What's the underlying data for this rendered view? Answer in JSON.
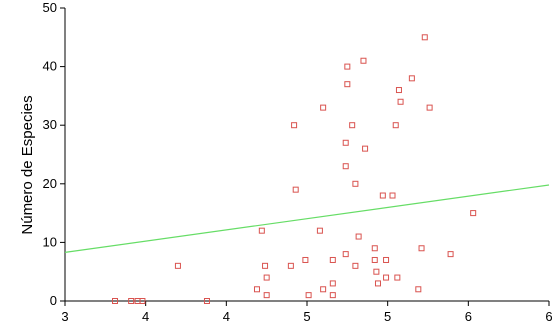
{
  "chart_data": {
    "type": "scatter",
    "title": "",
    "xlabel": "",
    "ylabel": "Número de Especies",
    "xlim": [
      3,
      6
    ],
    "ylim": [
      0,
      50
    ],
    "x_ticks": [
      3,
      3.5,
      4,
      4.5,
      5,
      5.5,
      6
    ],
    "x_tick_labels": [
      "3",
      "4",
      "4",
      "5",
      "5",
      "6",
      "6"
    ],
    "y_ticks": [
      0,
      10,
      20,
      30,
      40,
      50
    ],
    "y_tick_labels": [
      "0",
      "10",
      "20",
      "30",
      "40",
      "50"
    ],
    "grid": false,
    "marker": "open-square",
    "marker_color": "#d9534f",
    "fit_line_color": "#66dd66",
    "fit_line": {
      "x": [
        3,
        6
      ],
      "y": [
        8.3,
        19.8
      ]
    },
    "points": [
      {
        "x": 3.31,
        "y": 0
      },
      {
        "x": 3.41,
        "y": 0
      },
      {
        "x": 3.45,
        "y": 0
      },
      {
        "x": 3.48,
        "y": 0
      },
      {
        "x": 3.7,
        "y": 6
      },
      {
        "x": 3.88,
        "y": 0
      },
      {
        "x": 4.19,
        "y": 2
      },
      {
        "x": 4.22,
        "y": 12
      },
      {
        "x": 4.24,
        "y": 6
      },
      {
        "x": 4.25,
        "y": 4
      },
      {
        "x": 4.25,
        "y": 1
      },
      {
        "x": 4.4,
        "y": 6
      },
      {
        "x": 4.42,
        "y": 30
      },
      {
        "x": 4.43,
        "y": 19
      },
      {
        "x": 4.49,
        "y": 7
      },
      {
        "x": 4.51,
        "y": 1
      },
      {
        "x": 4.58,
        "y": 12
      },
      {
        "x": 4.6,
        "y": 2
      },
      {
        "x": 4.6,
        "y": 33
      },
      {
        "x": 4.66,
        "y": 7
      },
      {
        "x": 4.66,
        "y": 3
      },
      {
        "x": 4.66,
        "y": 1
      },
      {
        "x": 4.75,
        "y": 40
      },
      {
        "x": 4.75,
        "y": 37
      },
      {
        "x": 4.74,
        "y": 27
      },
      {
        "x": 4.74,
        "y": 23
      },
      {
        "x": 4.74,
        "y": 8
      },
      {
        "x": 4.78,
        "y": 30
      },
      {
        "x": 4.8,
        "y": 20
      },
      {
        "x": 4.8,
        "y": 6
      },
      {
        "x": 4.82,
        "y": 11
      },
      {
        "x": 4.85,
        "y": 41
      },
      {
        "x": 4.86,
        "y": 26
      },
      {
        "x": 4.92,
        "y": 9
      },
      {
        "x": 4.92,
        "y": 7
      },
      {
        "x": 4.93,
        "y": 5
      },
      {
        "x": 4.94,
        "y": 3
      },
      {
        "x": 4.97,
        "y": 18
      },
      {
        "x": 4.99,
        "y": 7
      },
      {
        "x": 4.99,
        "y": 4
      },
      {
        "x": 5.03,
        "y": 18
      },
      {
        "x": 5.05,
        "y": 30
      },
      {
        "x": 5.06,
        "y": 4
      },
      {
        "x": 5.07,
        "y": 36
      },
      {
        "x": 5.08,
        "y": 34
      },
      {
        "x": 5.15,
        "y": 38
      },
      {
        "x": 5.19,
        "y": 2
      },
      {
        "x": 5.21,
        "y": 9
      },
      {
        "x": 5.23,
        "y": 45
      },
      {
        "x": 5.26,
        "y": 33
      },
      {
        "x": 5.39,
        "y": 8
      },
      {
        "x": 5.53,
        "y": 15
      }
    ]
  }
}
